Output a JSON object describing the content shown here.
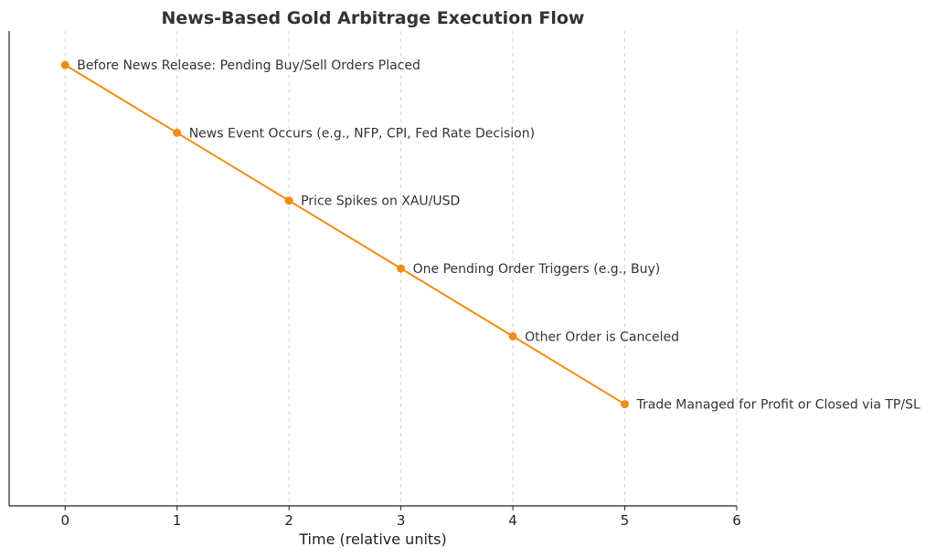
{
  "chart_data": {
    "type": "line",
    "title": "News-Based Gold Arbitrage Execution Flow",
    "xlabel": "Time (relative units)",
    "ylabel": "",
    "xlim": [
      -0.5,
      6
    ],
    "ylim": [
      -0.5,
      6.5
    ],
    "x_ticks": [
      0,
      1,
      2,
      3,
      4,
      5,
      6
    ],
    "grid": "vertical-dashed",
    "color": "#f28c13",
    "series": [
      {
        "x": [
          0,
          1,
          2,
          3,
          4,
          5
        ],
        "y": [
          6,
          5,
          4,
          3,
          2,
          1
        ],
        "labels": [
          "Before News Release: Pending Buy/Sell Orders Placed",
          "News Event Occurs (e.g., NFP, CPI, Fed Rate Decision)",
          "Price Spikes on XAU/USD",
          "One Pending Order Triggers (e.g., Buy)",
          "Other Order is Canceled",
          "Trade Managed for Profit or Closed via TP/SL"
        ]
      }
    ]
  }
}
